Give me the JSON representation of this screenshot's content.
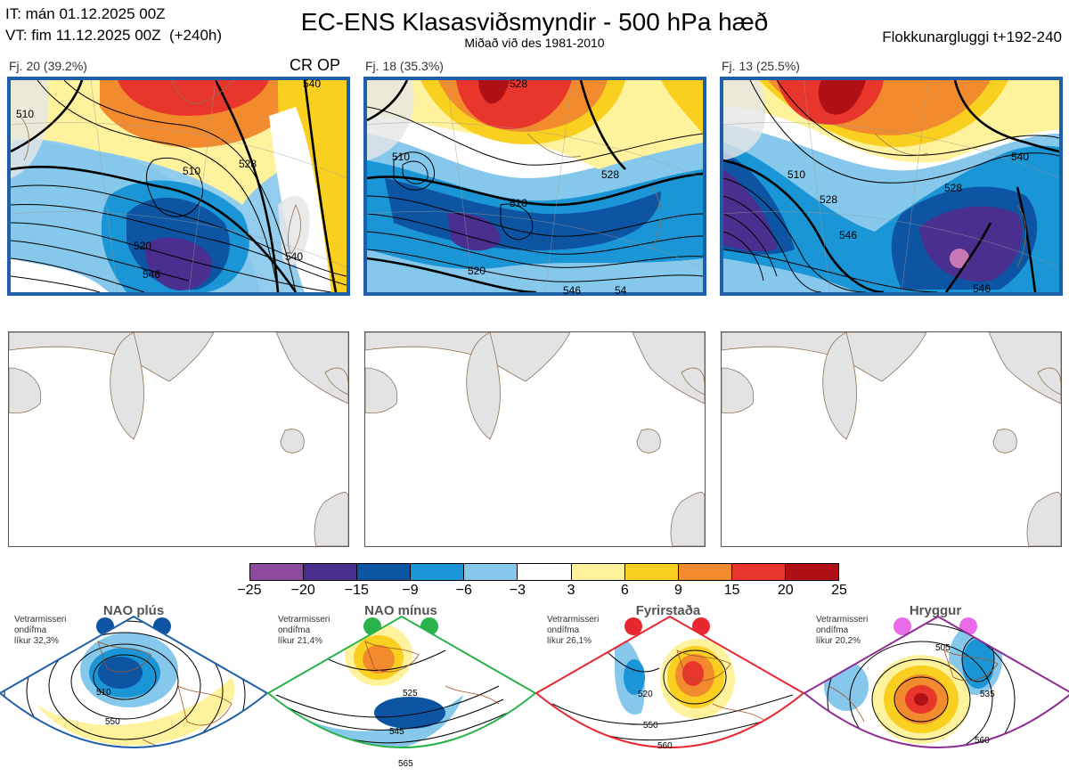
{
  "header": {
    "init_time": "IT: mán 01.12.2025 00Z",
    "valid_time": "VT: fim 11.12.2025 00Z  (+240h)",
    "title": "EC-ENS Klasasviðsmyndir - 500 hPa hæð",
    "subtitle": "Miðað við des 1981-2010",
    "window": "Flokkunargluggi t+192-240"
  },
  "clusters": [
    {
      "label": "Fj. 20 (39.2%)",
      "members": 20,
      "percent": 39.2,
      "markers": "CR OP",
      "contours": [
        "510",
        "520",
        "528",
        "540",
        "546",
        "540",
        "528",
        "510"
      ]
    },
    {
      "label": "Fj. 18 (35.3%)",
      "members": 18,
      "percent": 35.3,
      "markers": "",
      "contours": [
        "510",
        "528",
        "520",
        "528",
        "510",
        "546",
        "54"
      ]
    },
    {
      "label": "Fj. 13 (25.5%)",
      "members": 13,
      "percent": 25.5,
      "markers": "",
      "contours": [
        "510",
        "528",
        "528",
        "546",
        "546",
        "540"
      ]
    }
  ],
  "colorbar": {
    "ticks": [
      "−25",
      "−20",
      "−15",
      "−9",
      "−6",
      "−3",
      "3",
      "6",
      "9",
      "15",
      "20",
      "25"
    ],
    "colors": [
      "#8d4a9e",
      "#4a2f8f",
      "#0d55a3",
      "#1a95d6",
      "#86c8ec",
      "#ffffff",
      "#fff29c",
      "#f9cf20",
      "#f28a2e",
      "#e8362c",
      "#b01116"
    ]
  },
  "regimes": [
    {
      "name": "NAO plús",
      "info": "Vetrarmisseri\nondífma\nlíkur 32,3%",
      "color": "#0d55a3",
      "border": "#1f5fa8",
      "contours": [
        "510",
        "550"
      ]
    },
    {
      "name": "NAO mínus",
      "info": "Vetrarmisseri\nondífma\nlíkur 21,4%",
      "color": "#2ab34a",
      "border": "#2ab34a",
      "contours": [
        "525",
        "545",
        "565"
      ]
    },
    {
      "name": "Fyrirstaða",
      "info": "Vetrarmisseri\nondífma\nlíkur 26,1%",
      "color": "#e8272e",
      "border": "#e8272e",
      "contours": [
        "520",
        "550",
        "560"
      ]
    },
    {
      "name": "Hryggur",
      "info": "Vetrarmisseri\nondífma\nlíkur 20,2%",
      "color": "#ea6be8",
      "border": "#8e2d92",
      "contours": [
        "505",
        "535",
        "560"
      ]
    }
  ],
  "chart_data": {
    "type": "heatmap",
    "title": "EC-ENS Klasasviðsmyndir - 500 hPa hæð",
    "subtitle": "Miðað við des 1981-2010",
    "variable": "500 hPa height anomaly (dam)",
    "colorbar_ticks": [
      -25,
      -20,
      -15,
      -9,
      -6,
      -3,
      3,
      6,
      9,
      15,
      20,
      25
    ],
    "clusters": [
      {
        "members": 20,
        "percent": 39.2
      },
      {
        "members": 18,
        "percent": 35.3
      },
      {
        "members": 13,
        "percent": 25.5
      }
    ],
    "regime_probabilities": [
      {
        "regime": "NAO plús",
        "percent": 32.3
      },
      {
        "regime": "NAO mínus",
        "percent": 21.4
      },
      {
        "regime": "Fyrirstaða",
        "percent": 26.1
      },
      {
        "regime": "Hryggur",
        "percent": 20.2
      }
    ]
  }
}
